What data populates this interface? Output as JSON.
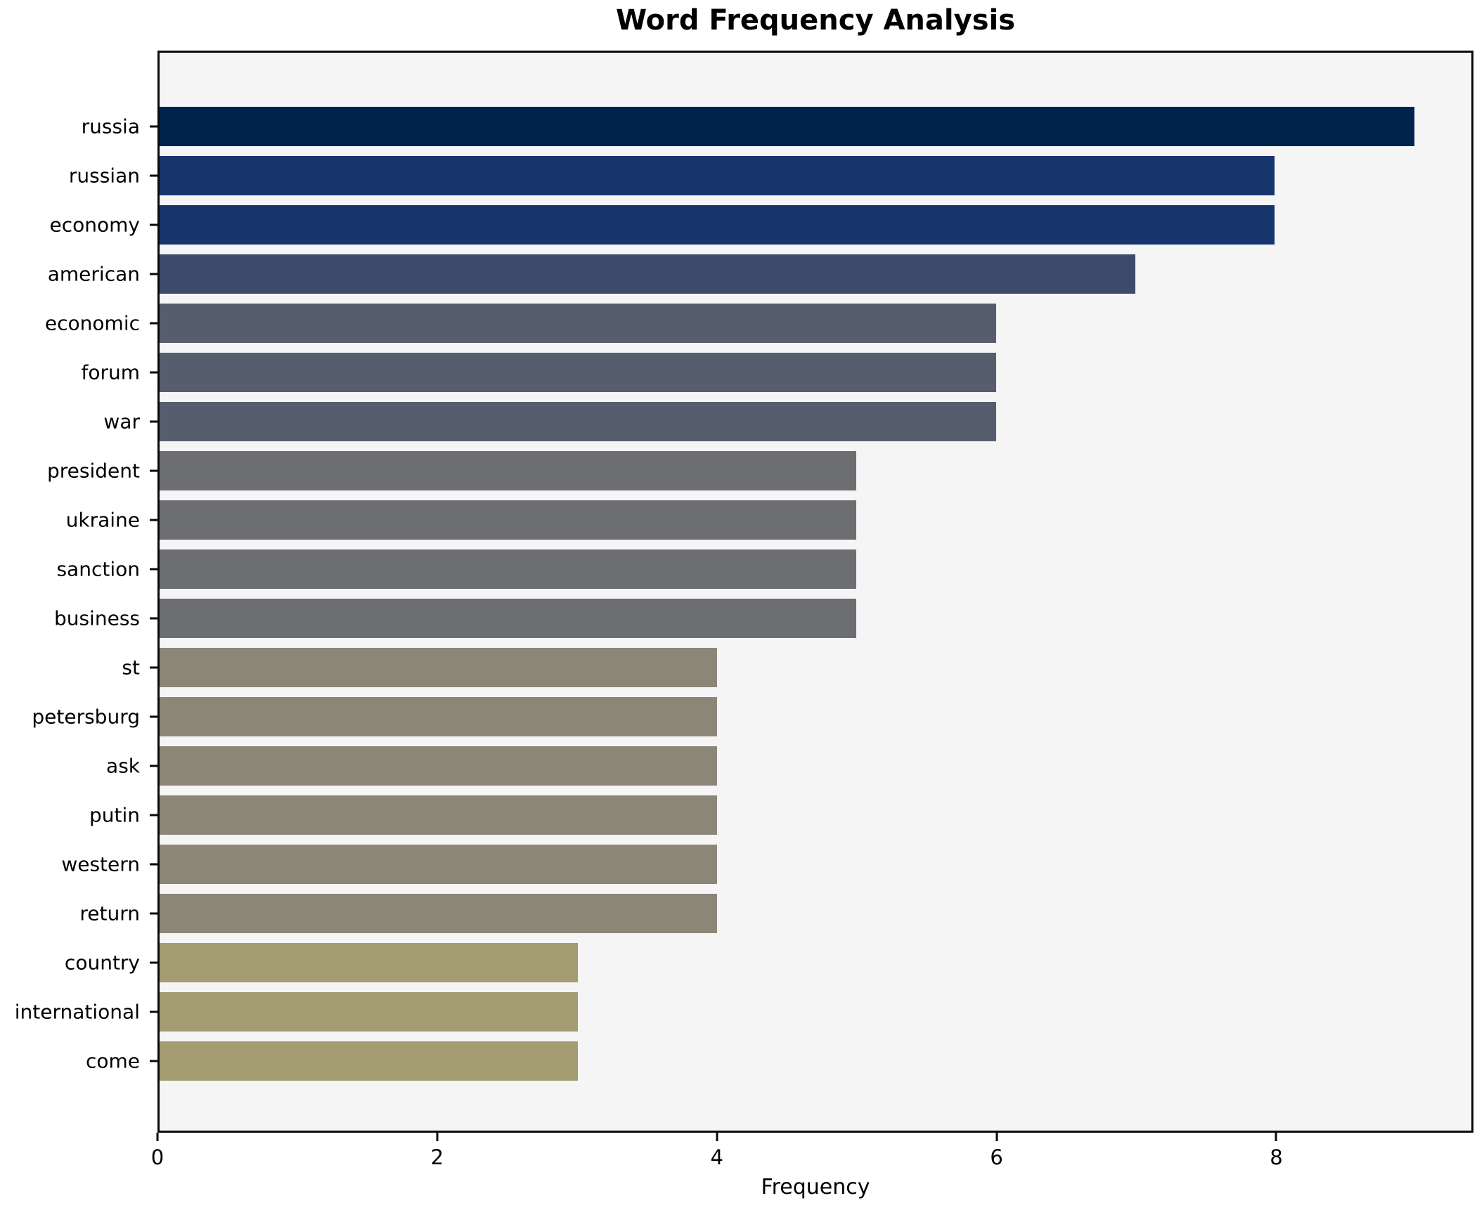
{
  "chart_data": {
    "type": "bar",
    "orientation": "horizontal",
    "title": "Word Frequency Analysis",
    "xlabel": "Frequency",
    "ylabel": "",
    "categories": [
      "russia",
      "russian",
      "economy",
      "american",
      "economic",
      "forum",
      "war",
      "president",
      "ukraine",
      "sanction",
      "business",
      "st",
      "petersburg",
      "ask",
      "putin",
      "western",
      "return",
      "country",
      "international",
      "come"
    ],
    "values": [
      9,
      8,
      8,
      7,
      6,
      6,
      6,
      5,
      5,
      5,
      5,
      4,
      4,
      4,
      4,
      4,
      4,
      3,
      3,
      3
    ],
    "bar_colors": [
      "#00234d",
      "#17356c",
      "#17356c",
      "#3d4a6c",
      "#565e6e",
      "#565e6e",
      "#565e6e",
      "#6c6e71",
      "#6c6e71",
      "#6c6e71",
      "#6c6e71",
      "#8a8779",
      "#8a8779",
      "#8a8779",
      "#8a8779",
      "#8a8779",
      "#8a8779",
      "#a49d73",
      "#a49d73",
      "#a49d73"
    ],
    "xticks": [
      "0",
      "2",
      "4",
      "6",
      "8"
    ],
    "xtick_values": [
      0,
      2,
      4,
      6,
      8
    ],
    "xlim": [
      0,
      9.41
    ],
    "grid": false,
    "legend": null,
    "plot_background": "#f5f5f6",
    "figure_background": "#ffffff",
    "spine_color": "#0a0a0a"
  }
}
